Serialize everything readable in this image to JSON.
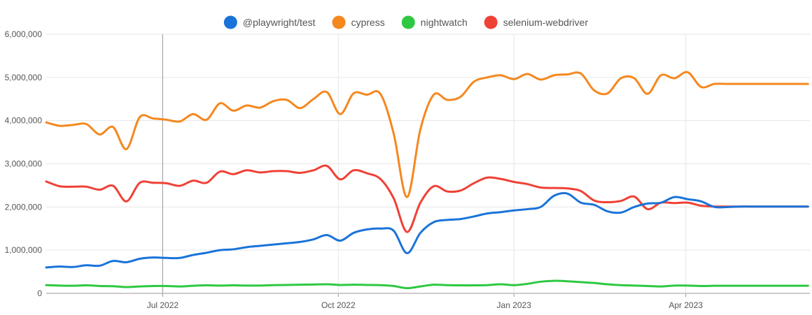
{
  "chart_data": {
    "type": "line",
    "legend_position": "top-center",
    "grid": true,
    "ylim": [
      0,
      6000000
    ],
    "y_ticks": [
      0,
      1000000,
      2000000,
      3000000,
      4000000,
      5000000,
      6000000
    ],
    "y_tick_labels": [
      "0",
      "1,000,000",
      "2,000,000",
      "3,000,000",
      "4,000,000",
      "5,000,000",
      "6,000,000"
    ],
    "x_range": [
      "2022-05-01",
      "2023-06-05"
    ],
    "x_ticks": [
      {
        "label": "Jul 2022",
        "date": "2022-07-01"
      },
      {
        "label": "Oct 2022",
        "date": "2022-10-01"
      },
      {
        "label": "Jan 2023",
        "date": "2023-01-01"
      },
      {
        "label": "Apr 2023",
        "date": "2023-04-01"
      }
    ],
    "hover_date": "2022-07-01",
    "x": [
      "2022-05-01",
      "2022-05-08",
      "2022-05-15",
      "2022-05-22",
      "2022-05-29",
      "2022-06-05",
      "2022-06-12",
      "2022-06-19",
      "2022-06-26",
      "2022-07-03",
      "2022-07-10",
      "2022-07-17",
      "2022-07-24",
      "2022-07-31",
      "2022-08-07",
      "2022-08-14",
      "2022-08-21",
      "2022-08-28",
      "2022-09-04",
      "2022-09-11",
      "2022-09-18",
      "2022-09-25",
      "2022-10-02",
      "2022-10-09",
      "2022-10-16",
      "2022-10-23",
      "2022-10-30",
      "2022-11-06",
      "2022-11-13",
      "2022-11-20",
      "2022-11-27",
      "2022-12-04",
      "2022-12-11",
      "2022-12-18",
      "2022-12-25",
      "2023-01-01",
      "2023-01-08",
      "2023-01-15",
      "2023-01-22",
      "2023-01-29",
      "2023-02-05",
      "2023-02-12",
      "2023-02-19",
      "2023-02-26",
      "2023-03-05",
      "2023-03-12",
      "2023-03-19",
      "2023-03-26",
      "2023-04-02",
      "2023-04-09",
      "2023-04-16",
      "2023-04-23",
      "2023-04-30",
      "2023-05-07",
      "2023-05-14",
      "2023-05-21",
      "2023-05-28",
      "2023-06-04"
    ],
    "series": [
      {
        "name": "@playwright/test",
        "color": "#1a73d9",
        "values": [
          600000,
          620000,
          610000,
          650000,
          640000,
          750000,
          720000,
          800000,
          830000,
          820000,
          820000,
          890000,
          940000,
          1000000,
          1020000,
          1070000,
          1100000,
          1130000,
          1160000,
          1190000,
          1250000,
          1350000,
          1220000,
          1400000,
          1480000,
          1500000,
          1450000,
          930000,
          1400000,
          1650000,
          1700000,
          1720000,
          1780000,
          1850000,
          1880000,
          1920000,
          1950000,
          2000000,
          2260000,
          2310000,
          2100000,
          2050000,
          1900000,
          1870000,
          2000000,
          2080000,
          2100000,
          2230000,
          2180000,
          2130000,
          2000000,
          2000000,
          2010000,
          2010000,
          2010000,
          2010000,
          2010000,
          2010000
        ]
      },
      {
        "name": "cypress",
        "color": "#f5881f",
        "values": [
          3960000,
          3880000,
          3900000,
          3920000,
          3680000,
          3850000,
          3340000,
          4080000,
          4050000,
          4020000,
          3980000,
          4150000,
          4020000,
          4400000,
          4230000,
          4350000,
          4300000,
          4450000,
          4480000,
          4290000,
          4500000,
          4660000,
          4150000,
          4630000,
          4600000,
          4620000,
          3700000,
          2230000,
          3800000,
          4600000,
          4480000,
          4550000,
          4900000,
          5000000,
          5050000,
          4960000,
          5080000,
          4950000,
          5050000,
          5070000,
          5090000,
          4700000,
          4630000,
          4980000,
          4980000,
          4620000,
          5050000,
          4980000,
          5120000,
          4780000,
          4850000,
          4850000,
          4850000,
          4850000,
          4850000,
          4850000,
          4850000,
          4850000
        ]
      },
      {
        "name": "nightwatch",
        "color": "#2ec842",
        "values": [
          190000,
          180000,
          175000,
          185000,
          170000,
          165000,
          145000,
          160000,
          170000,
          170000,
          160000,
          175000,
          185000,
          180000,
          185000,
          180000,
          180000,
          190000,
          195000,
          200000,
          205000,
          210000,
          195000,
          200000,
          195000,
          190000,
          170000,
          120000,
          160000,
          200000,
          190000,
          185000,
          185000,
          190000,
          210000,
          190000,
          220000,
          270000,
          290000,
          280000,
          260000,
          240000,
          210000,
          190000,
          180000,
          170000,
          160000,
          180000,
          180000,
          170000,
          175000,
          175000,
          175000,
          175000,
          175000,
          175000,
          175000,
          175000
        ]
      },
      {
        "name": "selenium-webdriver",
        "color": "#ef4136",
        "values": [
          2590000,
          2480000,
          2470000,
          2470000,
          2400000,
          2490000,
          2130000,
          2560000,
          2560000,
          2550000,
          2490000,
          2610000,
          2560000,
          2820000,
          2760000,
          2850000,
          2800000,
          2830000,
          2830000,
          2790000,
          2850000,
          2950000,
          2640000,
          2850000,
          2780000,
          2650000,
          2200000,
          1420000,
          2100000,
          2480000,
          2360000,
          2380000,
          2550000,
          2680000,
          2650000,
          2580000,
          2530000,
          2450000,
          2440000,
          2430000,
          2370000,
          2150000,
          2110000,
          2140000,
          2240000,
          1950000,
          2100000,
          2090000,
          2100000,
          2030000,
          2010000,
          2010000,
          2010000,
          2010000,
          2010000,
          2010000,
          2010000,
          2010000
        ]
      }
    ]
  }
}
